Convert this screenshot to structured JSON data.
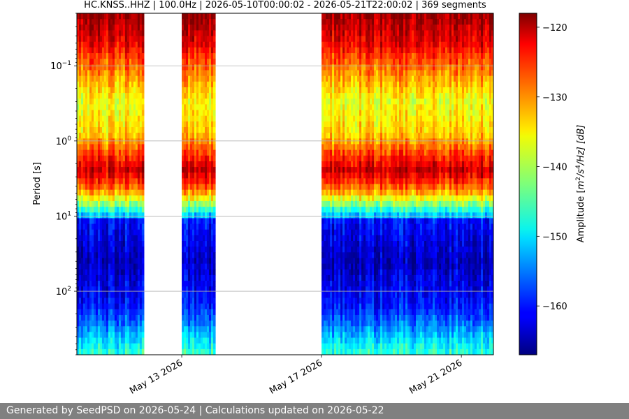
{
  "chart_data": {
    "type": "heatmap",
    "title": "HC.KNSS..HHZ | 100.0Hz | 2026-05-10T00:00:02 - 2026-05-21T22:00:02 | 369 segments",
    "ylabel": "Period [s]",
    "ylabel_scale": "log",
    "y_inverted": true,
    "ylim": [
      0.02,
      700
    ],
    "y_ticks": [
      {
        "value": 0.1,
        "base": "10",
        "exp": "−1"
      },
      {
        "value": 1,
        "base": "10",
        "exp": "0"
      },
      {
        "value": 10,
        "base": "10",
        "exp": "1"
      },
      {
        "value": 100,
        "base": "10",
        "exp": "2"
      }
    ],
    "xlim": [
      "2026-05-10T00:00",
      "2026-05-21T22:00"
    ],
    "x_ticks": [
      {
        "date": "2026-05-13",
        "label": "May 13 2026"
      },
      {
        "date": "2026-05-17",
        "label": "May 17 2026"
      },
      {
        "date": "2026-05-21",
        "label": "May 21 2026"
      }
    ],
    "data_segments": [
      {
        "start": "2026-05-10T00:00",
        "end": "2026-05-11T22:00"
      },
      {
        "start": "2026-05-13T00:00",
        "end": "2026-05-13T23:00"
      },
      {
        "start": "2026-05-17T00:00",
        "end": "2026-05-21T22:00"
      }
    ],
    "grid": "horizontal",
    "colorbar": {
      "label": "Amplitude [m²/s⁴/Hz] [dB]",
      "label_parts": {
        "prefix": "Amplitude [",
        "unit_m": "m",
        "exp_m": "2",
        "slash": "/s",
        "exp_s": "4",
        "suffix": "/Hz] [dB]"
      },
      "min": -167,
      "max": -118,
      "ticks": [
        -120,
        -130,
        -140,
        -150,
        -160
      ],
      "tick_labels": [
        "−120",
        "−130",
        "−140",
        "−150",
        "−160"
      ],
      "colormap": "jet"
    },
    "period_profile_db": [
      {
        "period": 0.02,
        "db": -119
      },
      {
        "period": 0.05,
        "db": -123
      },
      {
        "period": 0.1,
        "db": -129
      },
      {
        "period": 0.3,
        "db": -137
      },
      {
        "period": 0.8,
        "db": -134
      },
      {
        "period": 2.5,
        "db": -121
      },
      {
        "period": 4.5,
        "db": -130
      },
      {
        "period": 6.5,
        "db": -140
      },
      {
        "period": 10,
        "db": -152
      },
      {
        "period": 11,
        "db": -160
      },
      {
        "period": 40,
        "db": -164
      },
      {
        "period": 150,
        "db": -160
      },
      {
        "period": 250,
        "db": -156
      },
      {
        "period": 450,
        "db": -150
      },
      {
        "period": 700,
        "db": -146
      }
    ]
  },
  "footer": {
    "text": "Generated by SeedPSD on 2026-05-24 | Calculations updated on 2026-05-22"
  }
}
